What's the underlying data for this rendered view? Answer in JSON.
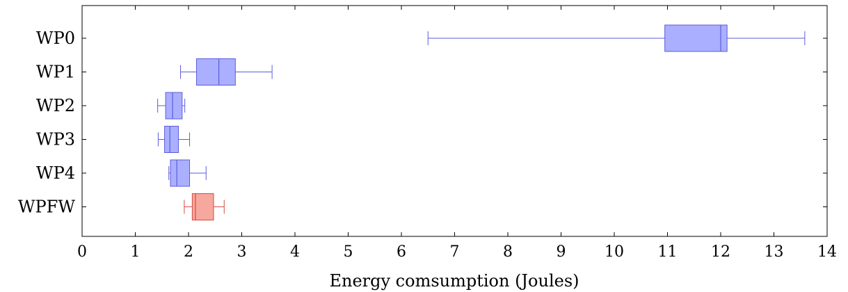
{
  "chart_data": {
    "type": "boxplot",
    "orientation": "horizontal",
    "title": "",
    "xlabel": "Energy comsumption (Joules)",
    "ylabel": "",
    "xlim": [
      0,
      14
    ],
    "xticks": [
      "0",
      "1",
      "2",
      "3",
      "4",
      "5",
      "6",
      "7",
      "8",
      "9",
      "10",
      "11",
      "12",
      "13",
      "14"
    ],
    "grid": false,
    "categories": [
      "WP0",
      "WP1",
      "WP2",
      "WP3",
      "WP4",
      "WPFW"
    ],
    "series": [
      {
        "category": "WP0",
        "min": 6.5,
        "q1": 10.95,
        "median": 12.0,
        "q3": 12.12,
        "max": 13.58,
        "color": "#5b5bdc",
        "fill": "#aab0ff"
      },
      {
        "category": "WP1",
        "min": 1.85,
        "q1": 2.15,
        "median": 2.57,
        "q3": 2.88,
        "max": 3.57,
        "color": "#5b5bdc",
        "fill": "#aab0ff"
      },
      {
        "category": "WP2",
        "min": 1.42,
        "q1": 1.57,
        "median": 1.7,
        "q3": 1.88,
        "max": 1.93,
        "color": "#5b5bdc",
        "fill": "#aab0ff"
      },
      {
        "category": "WP3",
        "min": 1.43,
        "q1": 1.55,
        "median": 1.65,
        "q3": 1.81,
        "max": 2.02,
        "color": "#5b5bdc",
        "fill": "#aab0ff"
      },
      {
        "category": "WP4",
        "min": 1.63,
        "q1": 1.66,
        "median": 1.78,
        "q3": 2.02,
        "max": 2.33,
        "color": "#5b5bdc",
        "fill": "#aab0ff"
      },
      {
        "category": "WPFW",
        "min": 1.92,
        "q1": 2.07,
        "median": 2.13,
        "q3": 2.47,
        "max": 2.67,
        "color": "#d9483b",
        "fill": "#f7a89e"
      }
    ]
  }
}
